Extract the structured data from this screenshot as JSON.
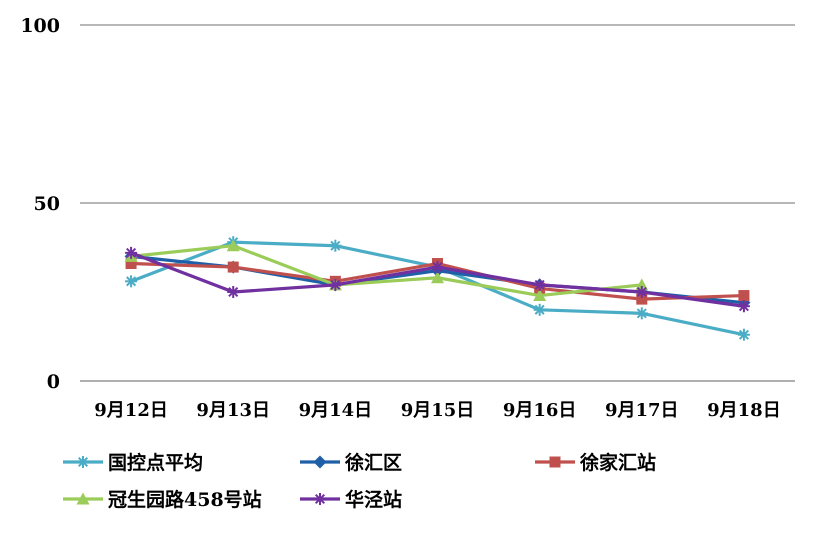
{
  "chart_data": {
    "type": "line",
    "title": "",
    "xlabel": "",
    "ylabel": "",
    "ylim": [
      0,
      100
    ],
    "yticks": [
      0,
      50,
      100
    ],
    "grid": true,
    "legend_position": "bottom",
    "categories": [
      "9月12日",
      "9月13日",
      "9月14日",
      "9月15日",
      "9月16日",
      "9月17日",
      "9月18日"
    ],
    "series": [
      {
        "name": "国控点平均",
        "color": "#4bacc6",
        "marker": "star",
        "values": [
          28,
          39,
          38,
          32,
          20,
          19,
          13
        ]
      },
      {
        "name": "徐汇区",
        "color": "#1f5fa8",
        "marker": "diamond",
        "values": [
          35,
          32,
          27,
          31,
          27,
          25,
          22
        ]
      },
      {
        "name": "徐家汇站",
        "color": "#c0504d",
        "marker": "square",
        "values": [
          33,
          32,
          28,
          33,
          26,
          23,
          24
        ]
      },
      {
        "name": "冠生园路458号站",
        "color": "#9bcc59",
        "marker": "triangle",
        "values": [
          35,
          38,
          27,
          29,
          24,
          27,
          null
        ]
      },
      {
        "name": "华泾站",
        "color": "#7030a0",
        "marker": "star",
        "values": [
          36,
          25,
          27,
          32,
          27,
          25,
          21
        ]
      }
    ]
  }
}
